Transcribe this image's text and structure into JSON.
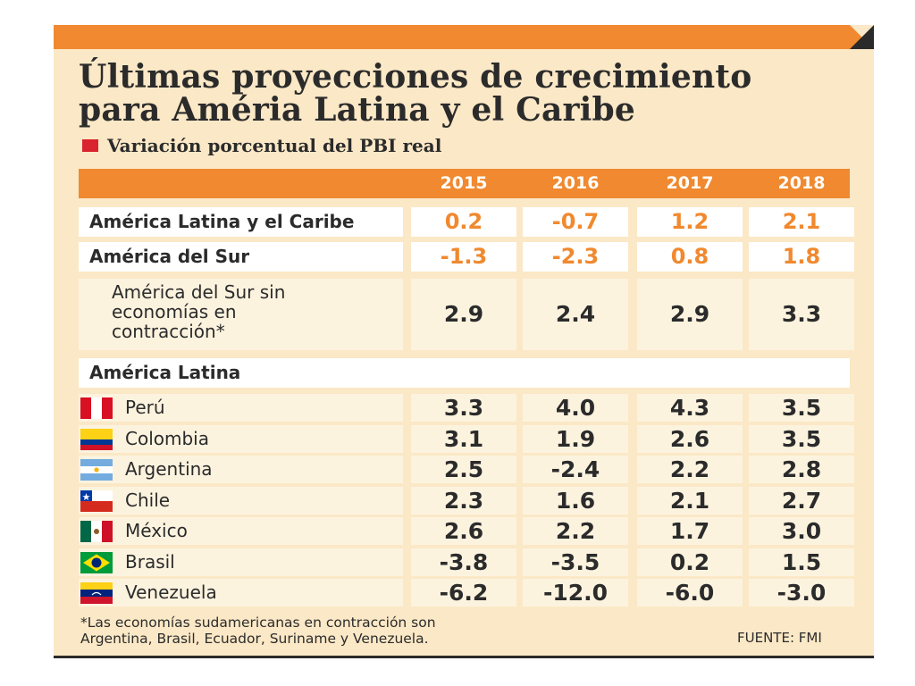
{
  "title_line1": "Últimas proyecciones de crecimiento",
  "title_line2": "para Améria Latina y el Caribe",
  "subtitle": "Variación porcentual del PBI real",
  "accent_color": "#f0892f",
  "marker_color": "#d9232e",
  "chart_data": {
    "type": "table",
    "columns": [
      "2015",
      "2016",
      "2017",
      "2018"
    ],
    "summary_rows": [
      {
        "label": "América Latina y el Caribe",
        "values": [
          "0.2",
          "-0.7",
          "1.2",
          "2.1"
        ]
      },
      {
        "label": "América del Sur",
        "values": [
          "-1.3",
          "-2.3",
          "0.8",
          "1.8"
        ]
      }
    ],
    "sub_row": {
      "label": "América del Sur sin economías en contracción*",
      "label_lines": [
        "América del Sur sin",
        "economías en",
        "contracción*"
      ],
      "values": [
        "2.9",
        "2.4",
        "2.9",
        "3.3"
      ]
    },
    "section_label": "América Latina",
    "countries": [
      {
        "name": "Perú",
        "flag": "peru-flag-icon",
        "values": [
          "3.3",
          "4.0",
          "4.3",
          "3.5"
        ]
      },
      {
        "name": "Colombia",
        "flag": "colombia-flag-icon",
        "values": [
          "3.1",
          "1.9",
          "2.6",
          "3.5"
        ]
      },
      {
        "name": "Argentina",
        "flag": "argentina-flag-icon",
        "values": [
          "2.5",
          "-2.4",
          "2.2",
          "2.8"
        ]
      },
      {
        "name": "Chile",
        "flag": "chile-flag-icon",
        "values": [
          "2.3",
          "1.6",
          "2.1",
          "2.7"
        ]
      },
      {
        "name": "México",
        "flag": "mexico-flag-icon",
        "values": [
          "2.6",
          "2.2",
          "1.7",
          "3.0"
        ]
      },
      {
        "name": "Brasil",
        "flag": "brazil-flag-icon",
        "values": [
          "-3.8",
          "-3.5",
          "0.2",
          "1.5"
        ]
      },
      {
        "name": "Venezuela",
        "flag": "venezuela-flag-icon",
        "values": [
          "-6.2",
          "-12.0",
          "-6.0",
          "-3.0"
        ]
      }
    ]
  },
  "footnote_line1": "*Las economías sudamericanas en contracción son",
  "footnote_line2": "Argentina, Brasil, Ecuador, Suriname y Venezuela.",
  "source": "FUENTE: FMI"
}
